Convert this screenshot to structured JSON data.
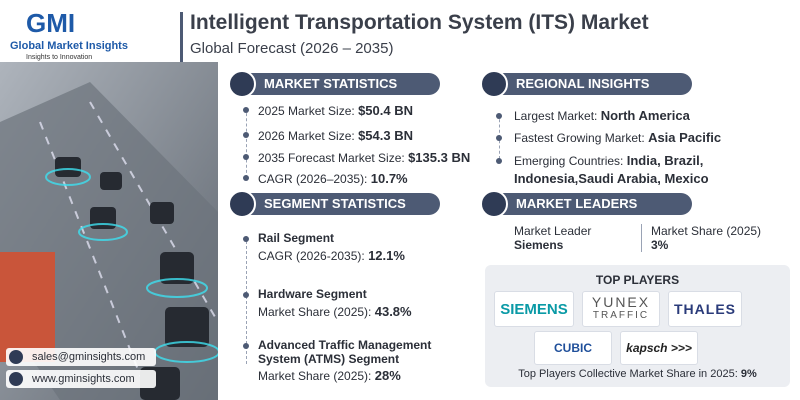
{
  "logo": {
    "mark": "GMI",
    "name": "Global Market Insights",
    "tagline": "Insights to Innovation"
  },
  "header": {
    "title": "Intelligent Transportation System (ITS) Market",
    "subtitle": "Global Forecast (2026 – 2035)"
  },
  "market_statistics": {
    "heading": "MARKET STATISTICS",
    "items": [
      {
        "label": "2025 Market Size:",
        "value": "$50.4 BN"
      },
      {
        "label": "2026 Market Size:",
        "value": "$54.3 BN"
      },
      {
        "label": "2035 Forecast Market Size:",
        "value": "$135.3 BN"
      },
      {
        "label": "CAGR (2026–2035):",
        "value": "10.7%"
      }
    ]
  },
  "segment_statistics": {
    "heading": "SEGMENT STATISTICS",
    "items": [
      {
        "name": "Rail Segment",
        "label": "CAGR (2026-2035):",
        "value": "12.1%"
      },
      {
        "name": "Hardware Segment",
        "label": "Market Share (2025):",
        "value": "43.8%"
      },
      {
        "name": "Advanced Traffic Management System (ATMS) Segment",
        "label": "Market Share (2025):",
        "value": "28%"
      }
    ]
  },
  "regional_insights": {
    "heading": "REGIONAL INSIGHTS",
    "items": [
      {
        "label": "Largest Market:",
        "value": "North America"
      },
      {
        "label": "Fastest Growing Market:",
        "value": "Asia Pacific"
      },
      {
        "label": "Emerging Countries:",
        "value": "India, Brazil, Indonesia,Saudi Arabia, Mexico"
      }
    ]
  },
  "market_leaders": {
    "heading": "MARKET LEADERS",
    "leader_label": "Market Leader",
    "leader": "Siemens",
    "share_label": "Market Share (2025)",
    "share": "3%"
  },
  "top_players": {
    "heading": "TOP PLAYERS",
    "logos": [
      "SIEMENS",
      "YUNEX",
      "TRAFFIC",
      "THALES",
      "CUBIC",
      "kapsch >>>"
    ],
    "footer_label": "Top Players Collective Market Share in 2025:",
    "footer_value": "9%"
  },
  "contact": {
    "email": "sales@gminsights.com",
    "website": "www.gminsights.com"
  }
}
